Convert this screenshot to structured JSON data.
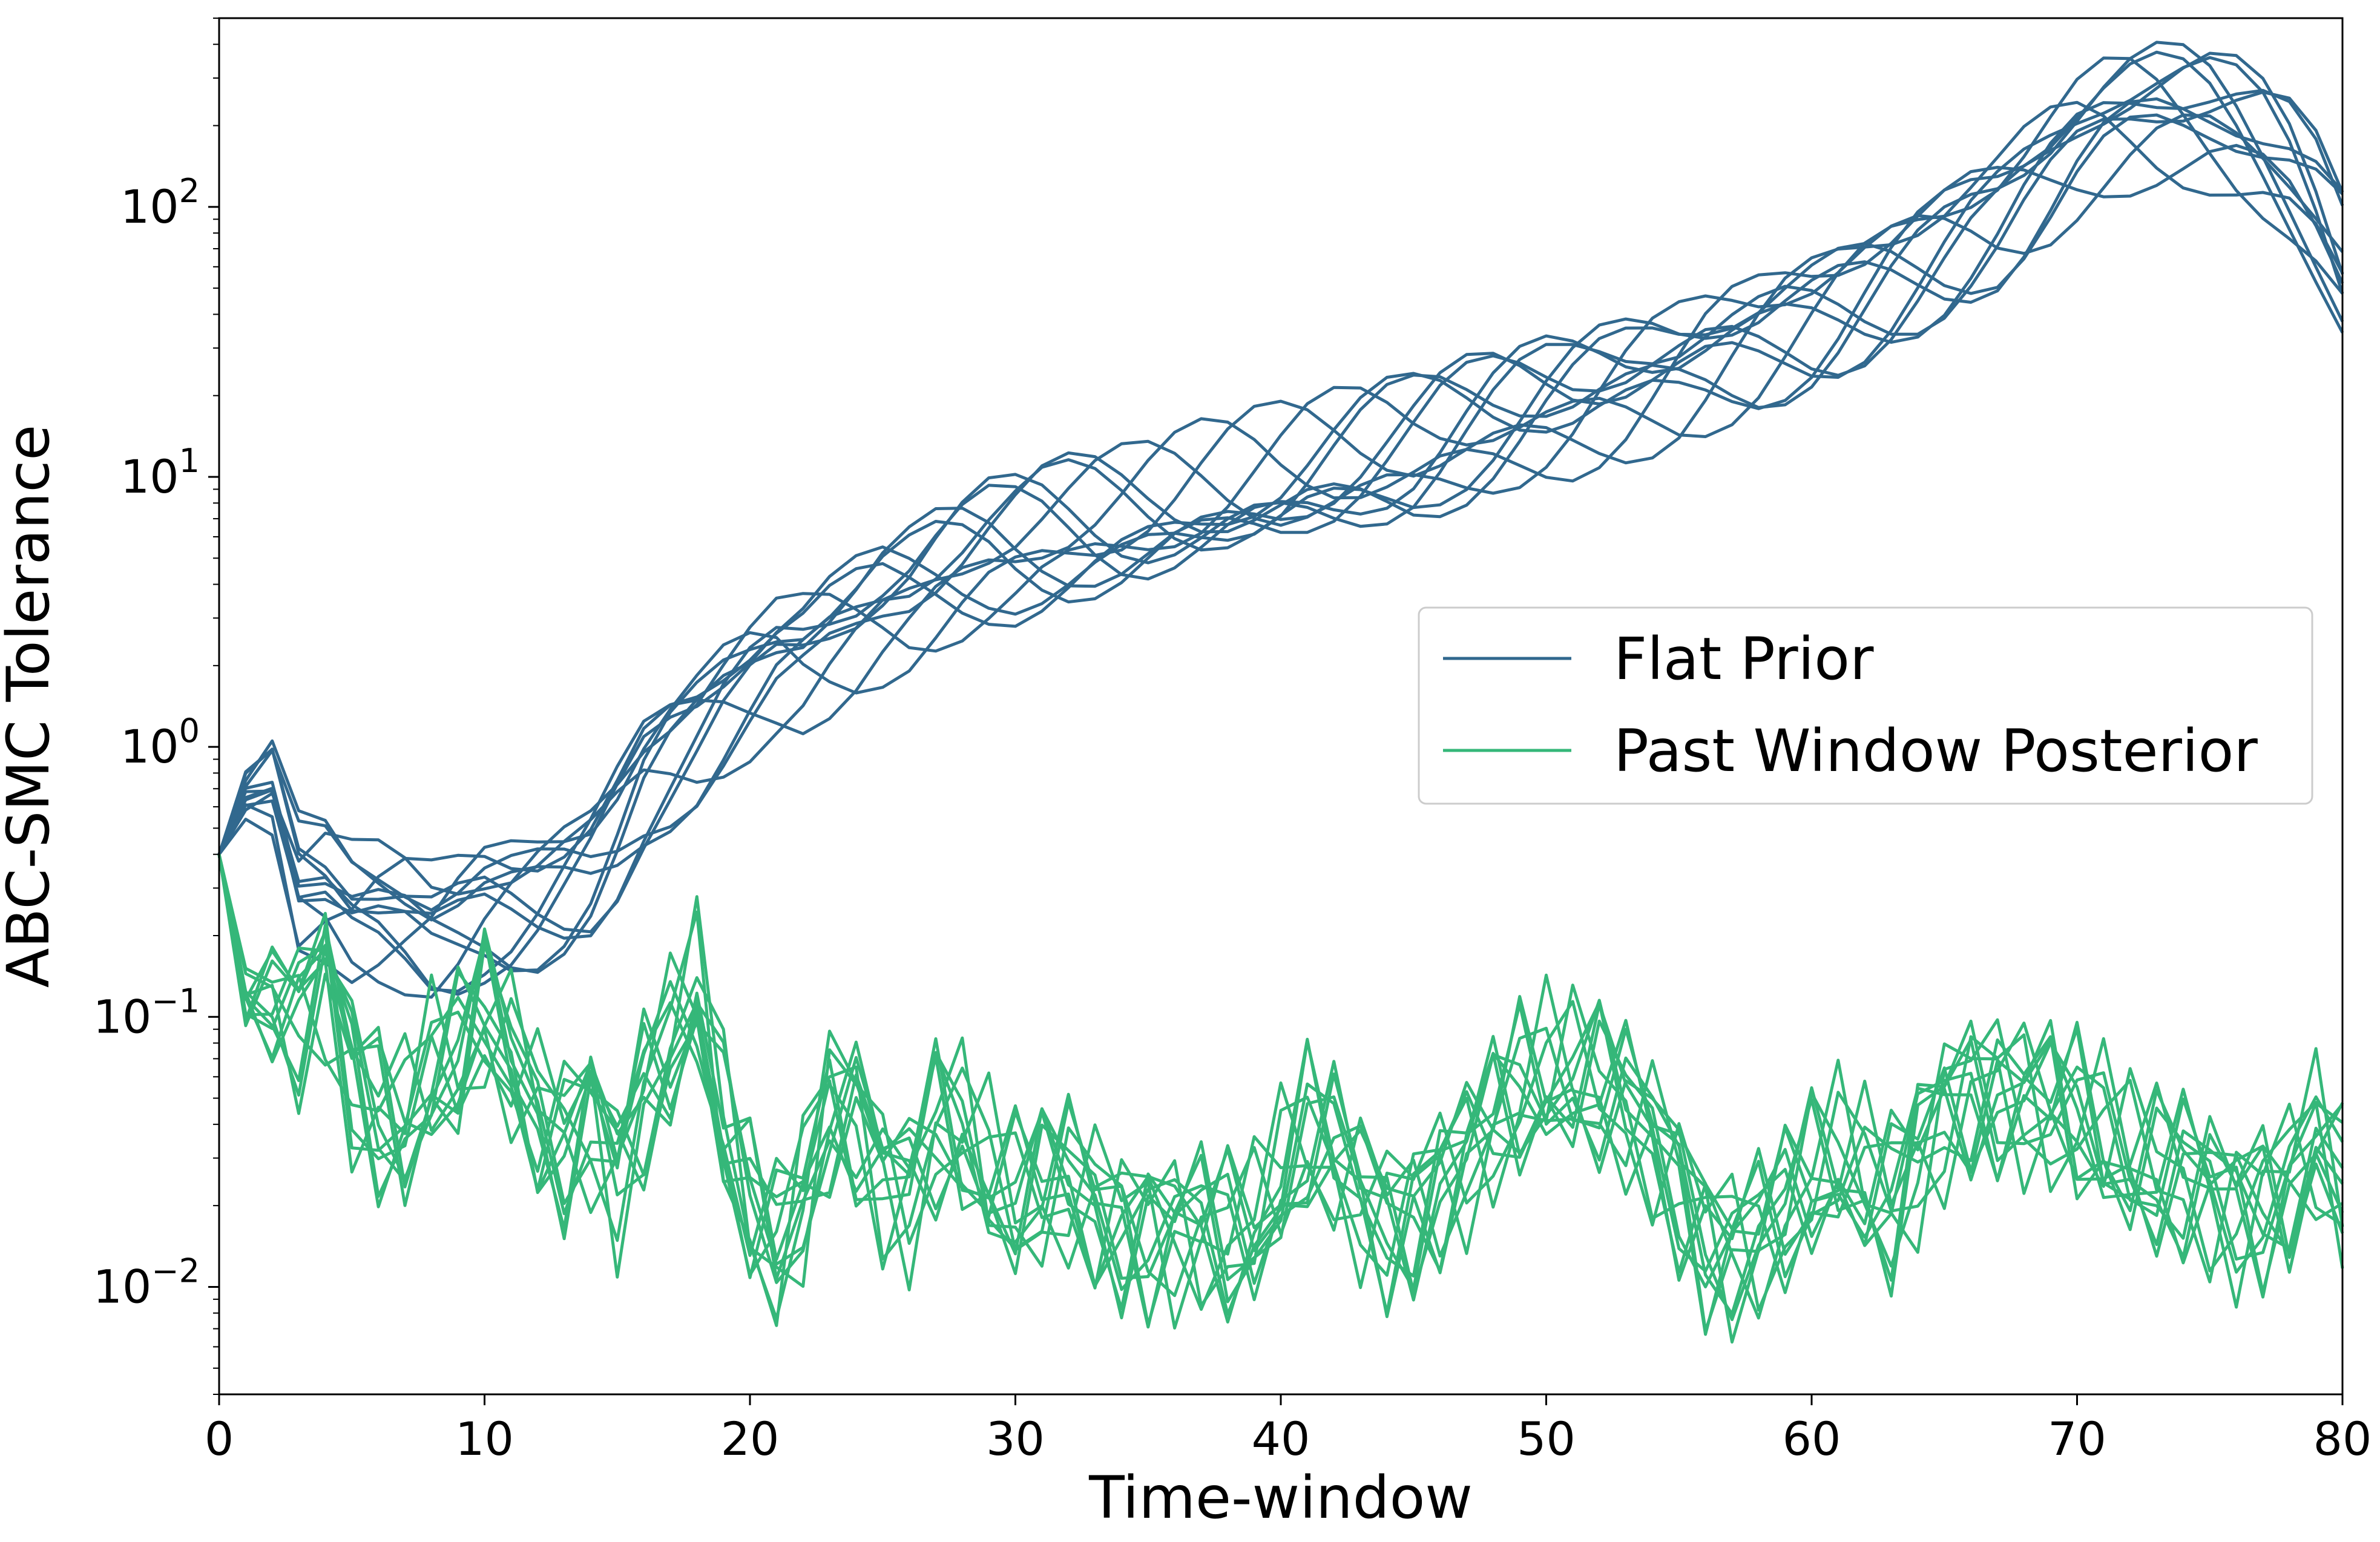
{
  "chart_data": {
    "type": "line",
    "title": "",
    "xlabel": "Time-window",
    "ylabel": "ABC-SMC Tolerance",
    "xlim": [
      0,
      80
    ],
    "ylim": [
      0.004,
      500
    ],
    "yscale": "log",
    "grid": false,
    "legend_position": "center-right",
    "x_ticks": [
      0,
      10,
      20,
      30,
      40,
      50,
      60,
      70,
      80
    ],
    "y_ticks": [
      {
        "value": 0.01,
        "base": "10",
        "exp": "−2"
      },
      {
        "value": 0.1,
        "base": "10",
        "exp": "−1"
      },
      {
        "value": 1,
        "base": "10",
        "exp": "0"
      },
      {
        "value": 10,
        "base": "10",
        "exp": "1"
      },
      {
        "value": 100,
        "base": "10",
        "exp": "2"
      }
    ],
    "colors": {
      "flat": "#31688e",
      "past": "#35b779"
    },
    "series": [
      {
        "name": "Flat Prior",
        "color": "#31688e",
        "x": [
          0,
          1,
          2,
          3,
          4,
          5,
          6,
          7,
          8,
          9,
          10,
          11,
          12,
          13,
          14,
          15,
          16,
          17,
          18,
          19,
          20,
          21,
          22,
          23,
          24,
          25,
          26,
          27,
          28,
          29,
          30,
          31,
          32,
          33,
          34,
          35,
          36,
          37,
          38,
          39,
          40,
          41,
          42,
          43,
          44,
          45,
          46,
          47,
          48,
          49,
          50,
          51,
          52,
          53,
          54,
          55,
          56,
          57,
          58,
          59,
          60,
          61,
          62,
          63,
          64,
          65,
          66,
          67,
          68,
          69,
          70,
          71,
          72,
          73,
          74,
          75,
          76,
          77,
          78,
          79,
          80
        ],
        "y": [
          0.4,
          0.65,
          0.7,
          0.3,
          0.3,
          0.25,
          0.25,
          0.24,
          0.22,
          0.24,
          0.27,
          0.28,
          0.3,
          0.34,
          0.4,
          0.55,
          0.8,
          1.0,
          1.2,
          1.5,
          1.8,
          2.1,
          2.2,
          2.5,
          2.8,
          3.2,
          3.5,
          4.0,
          4.5,
          5.0,
          5.3,
          5.7,
          6.0,
          6.3,
          6.6,
          7.0,
          7.5,
          8.0,
          8.5,
          9.0,
          9.4,
          10.0,
          10.5,
          11.0,
          11.5,
          12.0,
          13.0,
          14.0,
          15.0,
          16.0,
          17.0,
          18.0,
          19.5,
          21.0,
          23.0,
          25.0,
          28.0,
          31.0,
          34.0,
          38.0,
          42.0,
          47.0,
          53.0,
          60.0,
          68.0,
          77.0,
          88.0,
          100.0,
          120.0,
          145.0,
          175.0,
          200.0,
          215.0,
          220.0,
          215.0,
          205.0,
          185.0,
          160.0,
          130.0,
          95.0,
          62.0
        ]
      },
      {
        "name": "Past Window Posterior",
        "color": "#35b779",
        "x": [
          0,
          1,
          2,
          3,
          4,
          5,
          6,
          7,
          8,
          9,
          10,
          11,
          12,
          13,
          14,
          15,
          16,
          17,
          18,
          19,
          20,
          21,
          22,
          23,
          24,
          25,
          26,
          27,
          28,
          29,
          30,
          31,
          32,
          33,
          34,
          35,
          36,
          37,
          38,
          39,
          40,
          41,
          42,
          43,
          44,
          45,
          46,
          47,
          48,
          49,
          50,
          51,
          52,
          53,
          54,
          55,
          56,
          57,
          58,
          59,
          60,
          61,
          62,
          63,
          64,
          65,
          66,
          67,
          68,
          69,
          70,
          71,
          72,
          73,
          74,
          75,
          76,
          77,
          78,
          79,
          80
        ],
        "y": [
          0.4,
          0.12,
          0.12,
          0.1,
          0.14,
          0.06,
          0.045,
          0.04,
          0.06,
          0.065,
          0.1,
          0.07,
          0.045,
          0.035,
          0.045,
          0.025,
          0.05,
          0.08,
          0.13,
          0.04,
          0.018,
          0.013,
          0.022,
          0.05,
          0.045,
          0.025,
          0.022,
          0.04,
          0.038,
          0.026,
          0.02,
          0.022,
          0.024,
          0.02,
          0.018,
          0.017,
          0.016,
          0.016,
          0.015,
          0.017,
          0.025,
          0.035,
          0.03,
          0.022,
          0.018,
          0.02,
          0.025,
          0.03,
          0.04,
          0.05,
          0.06,
          0.06,
          0.055,
          0.045,
          0.035,
          0.025,
          0.016,
          0.014,
          0.015,
          0.018,
          0.025,
          0.03,
          0.025,
          0.02,
          0.03,
          0.045,
          0.055,
          0.055,
          0.05,
          0.045,
          0.04,
          0.035,
          0.03,
          0.027,
          0.025,
          0.022,
          0.02,
          0.022,
          0.025,
          0.035,
          0.022
        ]
      }
    ]
  }
}
